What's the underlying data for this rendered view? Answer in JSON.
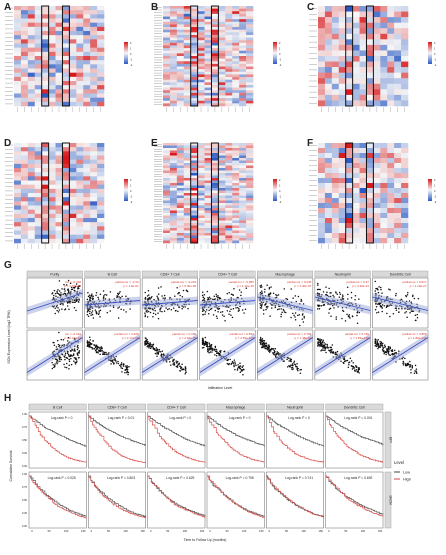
{
  "panel_labels": [
    "A",
    "B",
    "C",
    "D",
    "E",
    "F",
    "G",
    "H"
  ],
  "chart_data": [
    {
      "panel": "A",
      "type": "heatmap",
      "rows": 24,
      "cols": 13,
      "highlight_columns": [
        4,
        7
      ],
      "colorbar": {
        "ticks": [
          "2",
          "1",
          "0",
          "-1",
          "-2"
        ],
        "colors": [
          "#d7191c",
          "#f7f7f7",
          "#2b59c3"
        ]
      }
    },
    {
      "panel": "B",
      "type": "heatmap",
      "rows": 38,
      "cols": 13,
      "highlight_columns": [
        4,
        7
      ],
      "colorbar": {
        "ticks": [
          "2",
          "1",
          "0",
          "-1",
          "-2"
        ],
        "colors": [
          "#d7191c",
          "#f7f7f7",
          "#2b59c3"
        ]
      }
    },
    {
      "panel": "C",
      "type": "heatmap",
      "rows": 18,
      "cols": 13,
      "highlight_columns": [
        4,
        7
      ],
      "colorbar": {
        "ticks": [
          "2",
          "1",
          "0",
          "-1",
          "-2"
        ],
        "colors": [
          "#d7191c",
          "#f7f7f7",
          "#2b59c3"
        ]
      }
    },
    {
      "panel": "D",
      "type": "heatmap",
      "rows": 24,
      "cols": 13,
      "highlight_columns": [
        4,
        7
      ],
      "colorbar": {
        "ticks": [
          "2",
          "1",
          "0",
          "-1",
          "-2"
        ],
        "colors": [
          "#d7191c",
          "#f7f7f7",
          "#2b59c3"
        ]
      }
    },
    {
      "panel": "E",
      "type": "heatmap",
      "rows": 40,
      "cols": 13,
      "highlight_columns": [
        4,
        7
      ],
      "colorbar": {
        "ticks": [
          "2",
          "1",
          "0",
          "-1",
          "-2"
        ],
        "colors": [
          "#d7191c",
          "#f7f7f7",
          "#2b59c3"
        ]
      }
    },
    {
      "panel": "F",
      "type": "heatmap",
      "rows": 20,
      "cols": 13,
      "highlight_columns": [
        4,
        7
      ],
      "colorbar": {
        "ticks": [
          "2",
          "1",
          "0",
          "-1",
          "-2"
        ],
        "colors": [
          "#d7191c",
          "#f7f7f7",
          "#2b59c3"
        ]
      }
    },
    {
      "panel": "G",
      "type": "scatter",
      "ylabel": "SCN Expression Level (log2 TPM)",
      "xlabel": "Infiltration Level",
      "facets": [
        "Purity",
        "B Cell",
        "CD8+ T Cell",
        "CD4+ T Cell",
        "Macrophage",
        "Neutrophil",
        "Dendritic Cell"
      ],
      "rows": [
        {
          "stats": [
            {
              "line1": "cor = -0.492",
              "line2": "p = 2.74e-18"
            },
            {
              "line1": "partial.cor = -0.10",
              "line2": "p = 1.9e-01"
            },
            {
              "line1": "partial.cor = -0.219",
              "line2": "p = 6.40e-06"
            },
            {
              "line1": "partial.cor = -0.380",
              "line2": "p = 1.10e-15"
            },
            {
              "line1": "partial.cor = 0.245",
              "line2": "p = 4.40e-07"
            },
            {
              "line1": "partial.cor = 0.47",
              "line2": "p = 4.40e-24"
            },
            {
              "line1": "partial.cor = 0.517",
              "line2": "p = 1.10e-27"
            }
          ]
        },
        {
          "stats": [
            {
              "line1": "cor = -0.310",
              "line2": "p = 2.74e-12"
            },
            {
              "line1": "partial.cor = 0.328",
              "line2": "p = 2.17e-08"
            },
            {
              "line1": "partial.cor = 0.182",
              "line2": "p = 2.30e-05"
            },
            {
              "line1": "partial.cor = 0.830",
              "line2": "p = 4.65e-125"
            },
            {
              "line1": "partial.cor = 0.769",
              "line2": "p = 1.48e-97"
            },
            {
              "line1": "partial.cor = 0.796",
              "line2": "p = 1.66e-106"
            },
            {
              "line1": "partial.cor = 0.855",
              "line2": "p = 1.80e-141"
            }
          ]
        }
      ]
    },
    {
      "panel": "H",
      "type": "line",
      "ylabel": "Cumulative Survival",
      "xlabel": "Time to Follow Up (months)",
      "facets": [
        "B Cell",
        "CD8+ T Cell",
        "CD4+ T Cell",
        "Macrophage",
        "Neutrophil",
        "Dendritic Cell"
      ],
      "strip_right": [
        "EFT",
        "SKCM"
      ],
      "rows": [
        {
          "pvalues": [
            "Log-rank P = 0",
            "Log-rank P = 0.01",
            "Log-rank P = 0",
            "Log-rank P = 0",
            "Log-rank P = 0",
            "Log-rank P = 0.001"
          ]
        },
        {
          "pvalues": [
            "Log-rank P = 0.025",
            "Log-rank P = 0.803",
            "Log-rank P = 0.629",
            "Log-rank P = 0.755",
            "Log-rank P = 0.741",
            "Log-rank P = 0.692"
          ]
        }
      ],
      "y_ticks": [
        "1.00",
        "0.75",
        "0.50",
        "0.25",
        "0.00"
      ],
      "x_ticks": [
        "0",
        "50",
        "100",
        "150"
      ],
      "legend": {
        "title": "Level",
        "items": [
          {
            "label": "Low",
            "color": "#555555"
          },
          {
            "label": "High",
            "color": "#d9534f"
          }
        ]
      },
      "series_colors": {
        "low": "#555555",
        "high": "#d9534f",
        "ci_low": "#4a5fd0"
      }
    }
  ]
}
